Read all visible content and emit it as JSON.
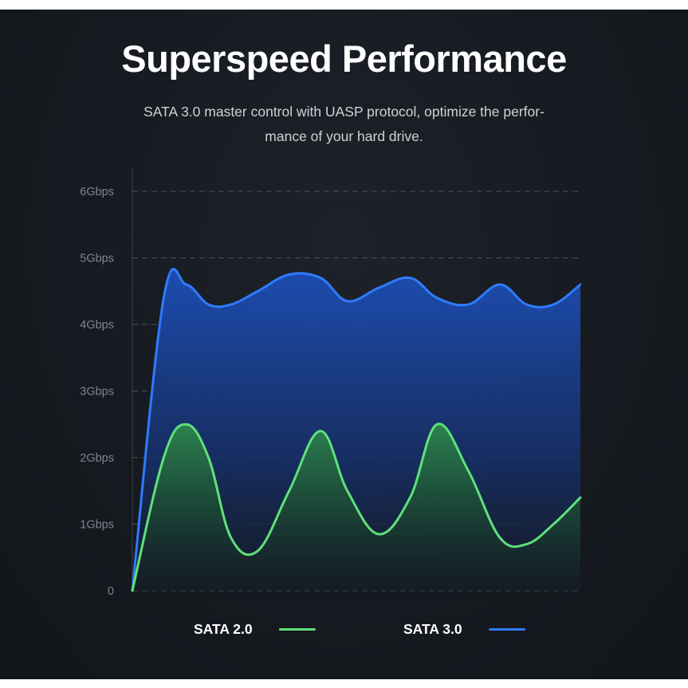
{
  "header": {
    "title": "Superspeed Performance",
    "subtitle_line1": "SATA 3.0 master control with UASP protocol, optimize the perfor-",
    "subtitle_line2": "mance of your hard drive."
  },
  "chart_data": {
    "type": "area",
    "ylim": [
      0,
      6
    ],
    "y_tick_labels": [
      "0",
      "1Gbps",
      "2Gbps",
      "3Gbps",
      "4Gbps",
      "5Gbps",
      "6Gbps"
    ],
    "grid": true,
    "grid_style": "dashed",
    "legend_placement": "bottom",
    "x": [
      0,
      0.07,
      0.12,
      0.17,
      0.22,
      0.28,
      0.35,
      0.42,
      0.48,
      0.55,
      0.62,
      0.68,
      0.75,
      0.82,
      0.88,
      0.94,
      1.0
    ],
    "series": [
      {
        "name": "SATA 3.0",
        "color": "#2f7bff",
        "values": [
          0,
          4.4,
          4.6,
          4.3,
          4.3,
          4.5,
          4.75,
          4.7,
          4.35,
          4.55,
          4.7,
          4.4,
          4.3,
          4.6,
          4.3,
          4.3,
          4.6
        ]
      },
      {
        "name": "SATA 2.0",
        "color": "#5fe07a",
        "values": [
          0,
          2.0,
          2.5,
          2.0,
          0.8,
          0.6,
          1.5,
          2.4,
          1.5,
          0.85,
          1.4,
          2.5,
          1.8,
          0.8,
          0.7,
          1.0,
          1.4
        ]
      }
    ]
  },
  "legend": {
    "sata2_label": "SATA 2.0",
    "sata3_label": "SATA 3.0"
  }
}
